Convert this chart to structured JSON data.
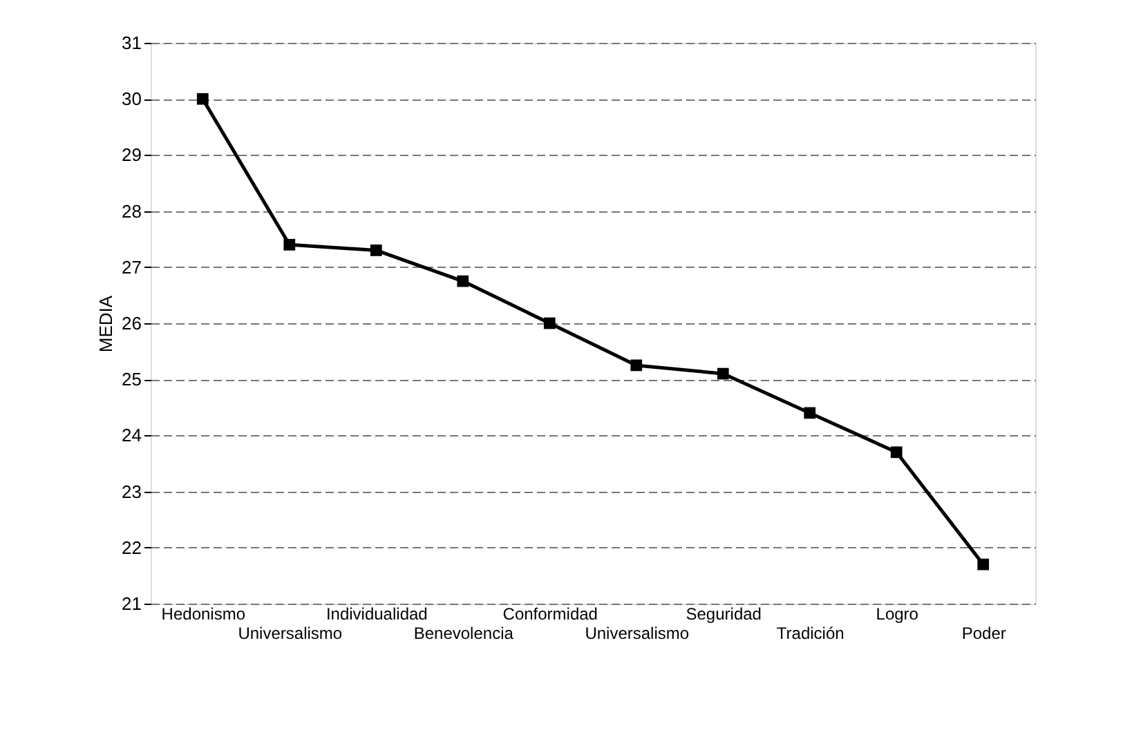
{
  "chart_data": {
    "type": "line",
    "ylabel": "MEDIA",
    "categories": [
      "Hedonismo",
      "Universalismo",
      "Individualidad",
      "Benevolencia",
      "Conformidad",
      "Universalismo",
      "Seguridad",
      "Tradición",
      "Logro",
      "Poder"
    ],
    "series": [
      {
        "color": "#000000",
        "values": [
          30.0,
          27.4,
          27.3,
          26.75,
          26.0,
          25.25,
          25.1,
          24.4,
          23.7,
          21.7
        ]
      }
    ],
    "ylim": [
      21,
      31
    ],
    "yticks": [
      21,
      22,
      23,
      24,
      25,
      26,
      27,
      28,
      29,
      30,
      31
    ],
    "grid": "y",
    "marker": "square",
    "line_style": "solid"
  }
}
